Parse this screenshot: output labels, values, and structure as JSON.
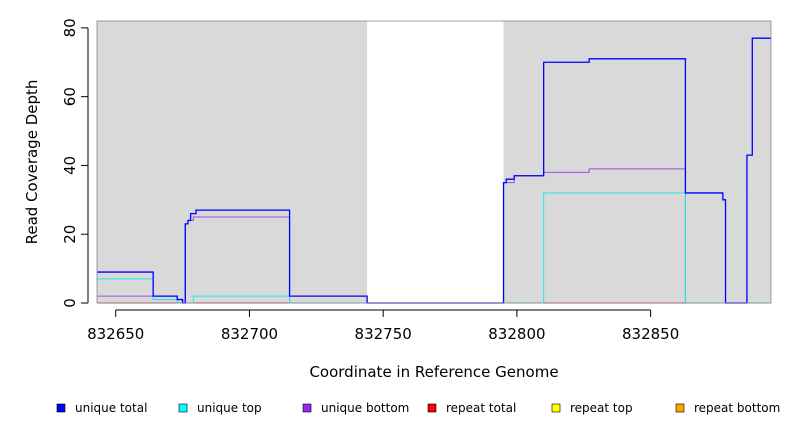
{
  "chart_data": {
    "type": "line",
    "title": "",
    "xlabel": "Coordinate in Reference Genome",
    "ylabel": "Read Coverage Depth",
    "xlim": [
      832643,
      832895
    ],
    "ylim": [
      0,
      82
    ],
    "x_ticks": [
      832650,
      832700,
      832750,
      832800,
      832850
    ],
    "x_tick_labels": [
      "832650",
      "832700",
      "832750",
      "832800",
      "832850"
    ],
    "y_ticks": [
      0,
      20,
      40,
      60,
      80
    ],
    "y_tick_labels": [
      "0",
      "20",
      "40",
      "60",
      "80"
    ],
    "shaded_regions": [
      {
        "x0": 832643,
        "x1": 832744,
        "color": "#d9d9d9"
      },
      {
        "x0": 832795,
        "x1": 832895,
        "color": "#d9d9d9"
      }
    ],
    "legend_position": "bottom",
    "series": [
      {
        "name": "unique total",
        "color": "#0000ff",
        "legend_color": "#0000ff",
        "points": [
          [
            832643,
            9
          ],
          [
            832664,
            9
          ],
          [
            832664,
            2
          ],
          [
            832673,
            2
          ],
          [
            832673,
            1
          ],
          [
            832675,
            1
          ],
          [
            832675,
            0
          ],
          [
            832676,
            0
          ],
          [
            832676,
            23
          ],
          [
            832677,
            23
          ],
          [
            832677,
            24
          ],
          [
            832678,
            24
          ],
          [
            832678,
            26
          ],
          [
            832680,
            26
          ],
          [
            832680,
            27
          ],
          [
            832715,
            27
          ],
          [
            832715,
            2
          ],
          [
            832744,
            2
          ],
          [
            832744,
            0
          ],
          [
            832795,
            0
          ],
          [
            832795,
            35
          ],
          [
            832796,
            35
          ],
          [
            832796,
            36
          ],
          [
            832799,
            36
          ],
          [
            832799,
            37
          ],
          [
            832810,
            37
          ],
          [
            832810,
            70
          ],
          [
            832827,
            70
          ],
          [
            832827,
            71
          ],
          [
            832863,
            71
          ],
          [
            832863,
            32
          ],
          [
            832877,
            32
          ],
          [
            832877,
            30
          ],
          [
            832878,
            30
          ],
          [
            832878,
            0
          ],
          [
            832886,
            0
          ],
          [
            832886,
            43
          ],
          [
            832888,
            43
          ],
          [
            832888,
            77
          ],
          [
            832895,
            77
          ]
        ]
      },
      {
        "name": "unique top",
        "color": "#1ee8e8",
        "legend_color": "#00ffff",
        "points": [
          [
            832643,
            7
          ],
          [
            832664,
            7
          ],
          [
            832664,
            1
          ],
          [
            832673,
            1
          ],
          [
            832673,
            0
          ],
          [
            832679,
            0
          ],
          [
            832679,
            2
          ],
          [
            832715,
            2
          ],
          [
            832715,
            0
          ],
          [
            832810,
            0
          ],
          [
            832810,
            32
          ],
          [
            832863,
            32
          ],
          [
            832863,
            0
          ],
          [
            832895,
            0
          ]
        ]
      },
      {
        "name": "unique bottom",
        "color": "#9b4fe8",
        "legend_color": "#a020f0",
        "points": [
          [
            832643,
            2
          ],
          [
            832673,
            2
          ],
          [
            832673,
            1
          ],
          [
            832675,
            1
          ],
          [
            832675,
            0
          ],
          [
            832676,
            0
          ],
          [
            832676,
            23
          ],
          [
            832677,
            23
          ],
          [
            832677,
            24
          ],
          [
            832679,
            24
          ],
          [
            832679,
            25
          ],
          [
            832715,
            25
          ],
          [
            832715,
            0
          ],
          [
            832795,
            0
          ],
          [
            832795,
            35
          ],
          [
            832799,
            35
          ],
          [
            832799,
            37
          ],
          [
            832810,
            37
          ],
          [
            832810,
            38
          ],
          [
            832827,
            38
          ],
          [
            832827,
            39
          ],
          [
            832863,
            39
          ],
          [
            832863,
            0
          ],
          [
            832895,
            0
          ]
        ]
      },
      {
        "name": "repeat total",
        "color": "#ff0000",
        "legend_color": "#ff0000",
        "points": [
          [
            832643,
            0
          ],
          [
            832895,
            0
          ]
        ]
      },
      {
        "name": "repeat top",
        "color": "#ffff00",
        "legend_color": "#ffff00",
        "points": [
          [
            832643,
            0
          ],
          [
            832895,
            0
          ]
        ]
      },
      {
        "name": "repeat bottom",
        "color": "#ffa500",
        "legend_color": "#ffa500",
        "points": [
          [
            832643,
            0
          ],
          [
            832895,
            0
          ]
        ]
      }
    ]
  }
}
